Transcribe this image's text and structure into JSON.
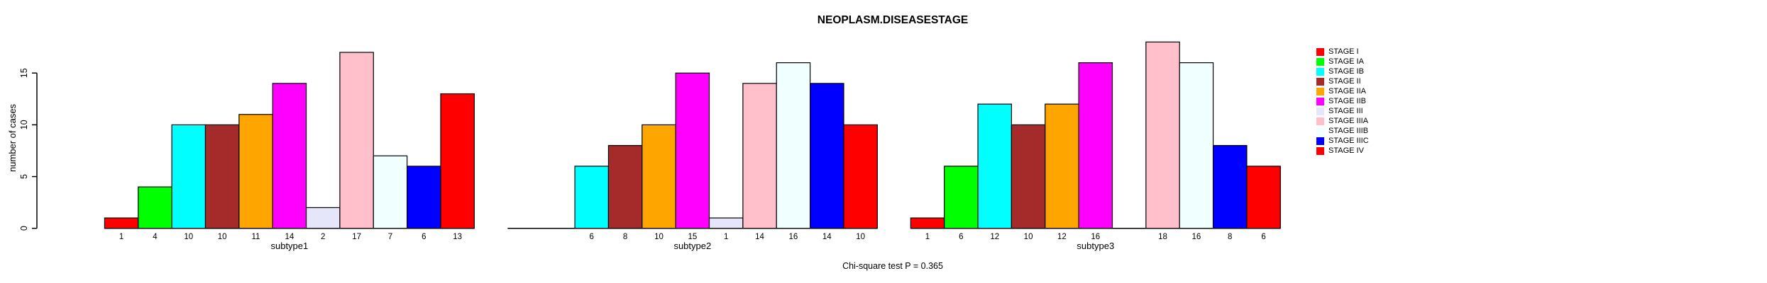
{
  "chart_data": {
    "type": "bar",
    "title": "NEOPLASM.DISEASESTAGE",
    "ylabel": "number of cases",
    "xlabel": "",
    "footnote": "Chi-square test P = 0.365",
    "yticks": [
      0,
      5,
      10,
      15
    ],
    "ylim": [
      0,
      15
    ],
    "grid": false,
    "legend_position": "right",
    "bar_value_labels_shown": true,
    "categories": [
      "subtype1",
      "subtype2",
      "subtype3"
    ],
    "series": [
      {
        "name": "STAGE I",
        "color": "#FF0000",
        "values": [
          1,
          0,
          1
        ]
      },
      {
        "name": "STAGE IA",
        "color": "#00FF00",
        "values": [
          4,
          0,
          6
        ]
      },
      {
        "name": "STAGE IB",
        "color": "#00FFFF",
        "values": [
          10,
          6,
          12
        ]
      },
      {
        "name": "STAGE II",
        "color": "#A52A2A",
        "values": [
          10,
          8,
          10
        ]
      },
      {
        "name": "STAGE IIA",
        "color": "#FFA500",
        "values": [
          11,
          10,
          12
        ]
      },
      {
        "name": "STAGE IIB",
        "color": "#FF00FF",
        "values": [
          14,
          15,
          16
        ]
      },
      {
        "name": "STAGE III",
        "color": "#E6E6FA",
        "values": [
          2,
          1,
          0
        ]
      },
      {
        "name": "STAGE IIIA",
        "color": "#FFC0CB",
        "values": [
          17,
          14,
          18
        ]
      },
      {
        "name": "STAGE IIIB",
        "color": "#F0FFFF",
        "values": [
          7,
          16,
          16
        ]
      },
      {
        "name": "STAGE IIIC",
        "color": "#0000FF",
        "values": [
          6,
          14,
          8
        ]
      },
      {
        "name": "STAGE IV",
        "color": "#FF0000",
        "values": [
          13,
          10,
          6
        ]
      }
    ],
    "axis_color": "#000000",
    "bar_border_color": "#000000"
  }
}
